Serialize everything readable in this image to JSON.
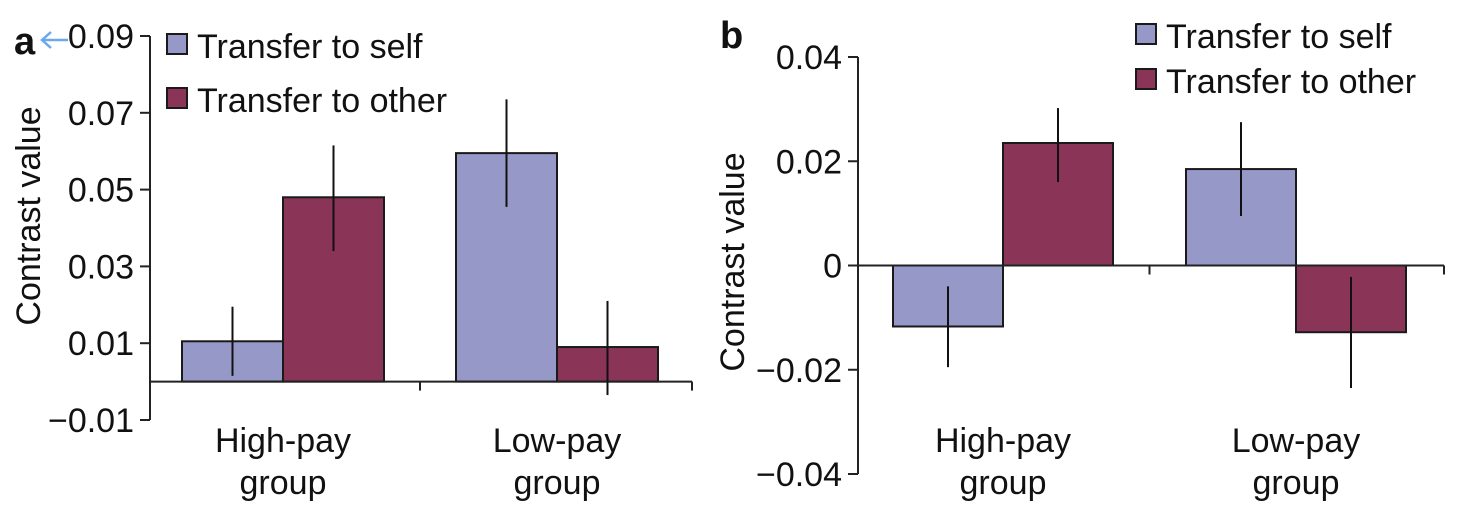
{
  "chart_data": [
    {
      "panel": "a",
      "type": "bar",
      "ylabel": "Contrast value",
      "xlabel": "",
      "ylim": [
        -0.01,
        0.09
      ],
      "yticks": [
        -0.01,
        0.01,
        0.03,
        0.05,
        0.07,
        0.09
      ],
      "ytick_labels": [
        "−0.01",
        "0.01",
        "0.03",
        "0.05",
        "0.07",
        "0.09"
      ],
      "categories": [
        "High-pay group",
        "Low-pay group"
      ],
      "category_lines": [
        [
          "High-pay",
          "group"
        ],
        [
          "Low-pay",
          "group"
        ]
      ],
      "legend_position": "top-left",
      "grid": false,
      "series": [
        {
          "name": "Transfer to self",
          "color": "#9698c8",
          "values": [
            0.0105,
            0.0595
          ],
          "err_low": [
            0.0015,
            0.0455
          ],
          "err_high": [
            0.0195,
            0.0735
          ]
        },
        {
          "name": "Transfer to other",
          "color": "#8a3458",
          "values": [
            0.048,
            0.009
          ],
          "err_low": [
            0.034,
            -0.0035
          ],
          "err_high": [
            0.0615,
            0.021
          ]
        }
      ]
    },
    {
      "panel": "b",
      "type": "bar",
      "ylabel": "Contrast value",
      "xlabel": "",
      "ylim": [
        -0.04,
        0.04
      ],
      "yticks": [
        -0.04,
        -0.02,
        0,
        0.02,
        0.04
      ],
      "ytick_labels": [
        "−0.04",
        "−0.02",
        "0",
        "0.02",
        "0.04"
      ],
      "categories": [
        "High-pay group",
        "Low-pay group"
      ],
      "category_lines": [
        [
          "High-pay",
          "group"
        ],
        [
          "Low-pay",
          "group"
        ]
      ],
      "legend_position": "top-right",
      "grid": false,
      "series": [
        {
          "name": "Transfer to self",
          "color": "#9698c8",
          "values": [
            -0.0117,
            0.0185
          ],
          "err_low": [
            -0.0195,
            0.0095
          ],
          "err_high": [
            -0.004,
            0.0275
          ]
        },
        {
          "name": "Transfer to other",
          "color": "#8a3458",
          "values": [
            0.0235,
            -0.0128
          ],
          "err_low": [
            0.016,
            -0.0235
          ],
          "err_high": [
            0.0302,
            -0.0022
          ]
        }
      ]
    }
  ]
}
